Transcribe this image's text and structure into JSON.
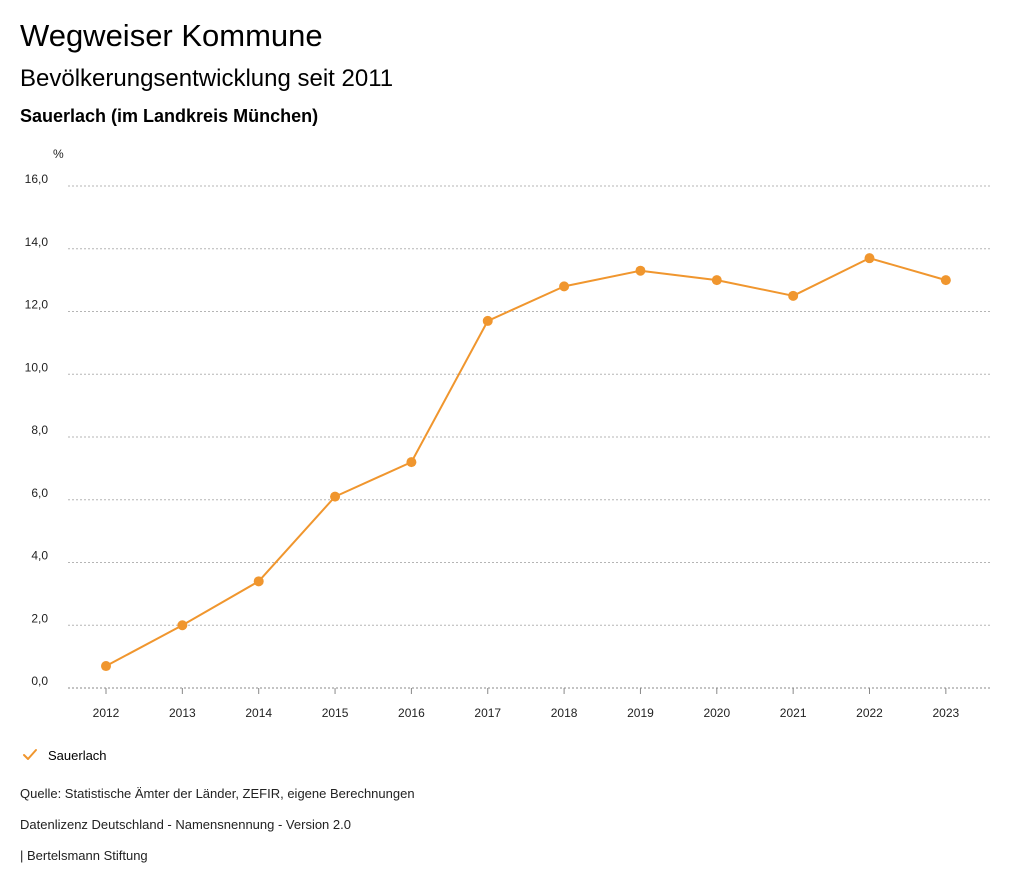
{
  "header": {
    "title": "Wegweiser Kommune",
    "subtitle": "Bevölkerungsentwicklung seit 2011",
    "region": "Sauerlach (im Landkreis München)"
  },
  "chart_data": {
    "type": "line",
    "title": "Bevölkerungsentwicklung seit 2011",
    "ylabel": "%",
    "xlabel": "",
    "ylim": [
      0,
      16
    ],
    "yticks": [
      "0,0",
      "2,0",
      "4,0",
      "6,0",
      "8,0",
      "10,0",
      "12,0",
      "14,0",
      "16,0"
    ],
    "categories": [
      "2012",
      "2013",
      "2014",
      "2015",
      "2016",
      "2017",
      "2018",
      "2019",
      "2020",
      "2021",
      "2022",
      "2023"
    ],
    "grid": true,
    "legend_position": "bottom-left",
    "series": [
      {
        "name": "Sauerlach",
        "color": "#f0962e",
        "values": [
          0.7,
          2.0,
          3.4,
          6.1,
          7.2,
          11.7,
          12.8,
          13.3,
          13.0,
          12.5,
          13.7,
          13.0
        ]
      }
    ]
  },
  "legend": {
    "items": [
      {
        "label": "Sauerlach",
        "icon": "check-icon",
        "color": "#f0962e"
      }
    ]
  },
  "footer": {
    "source": "Quelle: Statistische Ämter der Länder, ZEFIR, eigene Berechnungen",
    "license": "Datenlizenz Deutschland - Namensnennung - Version 2.0",
    "credit": "| Bertelsmann Stiftung"
  }
}
